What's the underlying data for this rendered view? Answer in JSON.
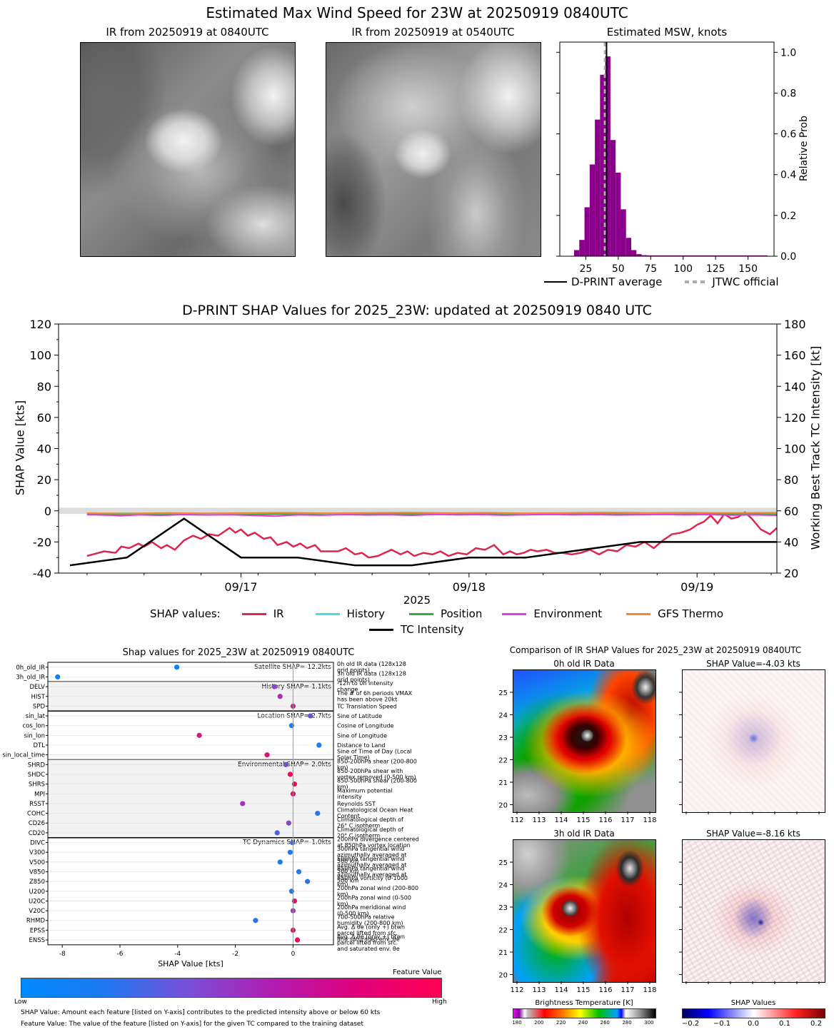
{
  "page": {
    "main_title": "Estimated Max Wind Speed for 23W at 20250919 0840UTC",
    "ir_now_title": "IR from 20250919 at 0840UTC",
    "ir_prev_title": "IR from 20250919 at 0540UTC",
    "hist_title": "Estimated MSW, knots",
    "hist_ylabel": "Relative Prob",
    "legend_dprint": "D-PRINT average",
    "legend_jtwc": "JTWC official",
    "shap_ts_title": "D-PRINT SHAP Values for 2025_23W: updated at 20250919 0840 UTC",
    "ts_ylabel_left": "SHAP Value [kts]",
    "ts_ylabel_right": "Working Best Track TC Intensity [kt]",
    "ts_xlabel": "2025",
    "shap_values_label": "SHAP values:",
    "shap_feat_title": "Shap values for 2025_23W at 20250919 0840UTC",
    "shap_feat_xlabel": "SHAP Value [kts]",
    "feature_value_label": "Feature Value",
    "cb_low": "Low",
    "cb_high": "High",
    "note1": "SHAP Value: Amount each feature [listed on Y-axis] contributes to the predicted intensity above or below 60 kts",
    "note2": "Feature Value: The value of the feature [listed on Y-axis] for the given TC compared to the training dataset",
    "ir_cmp_title": "Comparison of IR SHAP Values for 2025_23W at 20250919 0840UTC",
    "ir0_title": "0h old IR Data",
    "ir3_title": "3h old IR Data",
    "shap0_title": "SHAP Value=-4.03 kts",
    "shap3_title": "SHAP Value=-8.16 kts",
    "bt_label": "Brightness Temperature [K]",
    "shapcb_label": "SHAP Values"
  },
  "chart_data": [
    {
      "type": "bar",
      "title": "Estimated MSW, knots",
      "ylabel": "Relative Prob",
      "xlim": [
        5,
        170
      ],
      "ylim": [
        0,
        1.05
      ],
      "xticks": [
        "25",
        "50",
        "75",
        "100",
        "125",
        "150"
      ],
      "yticks": [
        "0.0",
        "0.2",
        "0.4",
        "0.6",
        "0.8",
        "1.0"
      ],
      "bin_width": 4,
      "bins_start": [
        16,
        20,
        24,
        28,
        32,
        36,
        40,
        44,
        48,
        52,
        56,
        60,
        64,
        68
      ],
      "values": [
        0.03,
        0.08,
        0.24,
        0.45,
        0.67,
        0.89,
        0.98,
        0.57,
        0.41,
        0.23,
        0.09,
        0.03,
        0.01,
        0.005
      ],
      "dprint_average": 41,
      "jtwc_official": 40
    },
    {
      "type": "line",
      "title": "D-PRINT SHAP Values for 2025_23W: updated at 20250919 0840 UTC",
      "x_domain": [
        0,
        6.3
      ],
      "xticks": [
        "09/17",
        "09/18",
        "09/19"
      ],
      "xlabel": "2025",
      "ylim_left": [
        -40,
        120
      ],
      "ylim_right": [
        20,
        180
      ],
      "yticks_left": [
        "120",
        "100",
        "80",
        "60",
        "40",
        "20",
        "0",
        "-20",
        "-40"
      ],
      "yticks_right": [
        "180",
        "160",
        "140",
        "120",
        "100",
        "80",
        "60",
        "40",
        "20"
      ],
      "series": [
        {
          "name": "IR",
          "color": "#dc2550",
          "x": [
            0.25,
            0.3,
            0.4,
            0.5,
            0.55,
            0.62,
            0.7,
            0.75,
            0.82,
            0.9,
            0.95,
            1.02,
            1.1,
            1.18,
            1.25,
            1.32,
            1.4,
            1.46,
            1.5,
            1.55,
            1.6,
            1.66,
            1.72,
            1.8,
            1.86,
            1.92,
            2.0,
            2.06,
            2.12,
            2.18,
            2.25,
            2.3,
            2.38,
            2.45,
            2.52,
            2.6,
            2.66,
            2.72,
            2.8,
            2.86,
            2.92,
            3.0,
            3.06,
            3.12,
            3.2,
            3.28,
            3.35,
            3.42,
            3.5,
            3.58,
            3.66,
            3.74,
            3.82,
            3.9,
            3.96,
            4.02,
            4.08,
            4.14,
            4.2,
            4.28,
            4.35,
            4.42,
            4.5,
            4.58,
            4.66,
            4.74,
            4.82,
            4.9,
            4.98,
            5.06,
            5.14,
            5.22,
            5.3,
            5.38,
            5.46,
            5.54,
            5.6,
            5.66,
            5.72,
            5.78,
            5.84,
            5.9,
            5.96,
            6.02,
            6.08,
            6.16,
            6.24,
            6.3
          ],
          "y": [
            -29,
            -28,
            -26,
            -27,
            -23,
            -24,
            -21,
            -23,
            -20,
            -24,
            -22,
            -25,
            -19,
            -16,
            -18,
            -15,
            -16,
            -13,
            -11,
            -14,
            -12,
            -16,
            -14,
            -18,
            -17,
            -22,
            -20,
            -23,
            -21,
            -24,
            -22,
            -26,
            -26,
            -26,
            -24,
            -28,
            -27,
            -30,
            -29,
            -27,
            -25,
            -28,
            -26,
            -29,
            -27,
            -28,
            -26,
            -29,
            -27,
            -28,
            -24,
            -25,
            -22,
            -28,
            -26,
            -28,
            -27,
            -25,
            -26,
            -25,
            -27,
            -27,
            -28,
            -27,
            -25,
            -28,
            -25,
            -26,
            -22,
            -23,
            -20,
            -24,
            -19,
            -15,
            -14,
            -12,
            -9,
            -7,
            -3,
            -8,
            -2,
            -5,
            -4,
            -1,
            -5,
            -12,
            -15,
            -11
          ]
        },
        {
          "name": "History",
          "color": "#44dfe8",
          "x": [
            0.25,
            0.6,
            0.95,
            1.3,
            1.65,
            2.0,
            2.35,
            2.7,
            3.05,
            3.4,
            3.75,
            4.1,
            4.45,
            4.8,
            5.15,
            5.5,
            5.85,
            6.3
          ],
          "y": [
            -1.8,
            -1.5,
            -1.9,
            -1.6,
            -1.4,
            -1.7,
            -1.5,
            -1.9,
            -1.6,
            -1.4,
            -1.8,
            -1.5,
            -1.7,
            -1.4,
            -1.6,
            -1.3,
            -1.5,
            -1.4
          ]
        },
        {
          "name": "Position",
          "color": "#3aaa3a",
          "x": [
            0.25,
            0.6,
            0.95,
            1.3,
            1.65,
            2.0,
            2.35,
            2.7,
            3.05,
            3.4,
            3.75,
            4.1,
            4.45,
            4.8,
            5.15,
            5.5,
            5.85,
            6.3
          ],
          "y": [
            -2.2,
            -2.5,
            -2.3,
            -2.6,
            -2.4,
            -2.2,
            -2.5,
            -2.3,
            -2.1,
            -2.4,
            -2.2,
            -2.5,
            -2.3,
            -2.1,
            -2.4,
            -2.2,
            -2.0,
            -2.3
          ]
        },
        {
          "name": "Environment",
          "color": "#e838e8",
          "x": [
            0.25,
            0.45,
            0.55,
            0.7,
            0.9,
            1.1,
            1.3,
            1.5,
            1.7,
            1.9,
            2.1,
            2.3,
            2.5,
            2.7,
            2.9,
            3.1,
            3.3,
            3.5,
            3.7,
            3.9,
            4.1,
            4.3,
            4.5,
            4.7,
            4.9,
            5.1,
            5.3,
            5.5,
            5.7,
            5.9,
            6.1,
            6.3
          ],
          "y": [
            -2.5,
            -2.8,
            -3.2,
            -2.6,
            -2.9,
            -2.4,
            -2.7,
            -2.5,
            -2.9,
            -3.4,
            -2.6,
            -2.8,
            -2.4,
            -2.7,
            -2.5,
            -2.9,
            -2.3,
            -2.6,
            -2.4,
            -2.8,
            -2.5,
            -2.2,
            -2.6,
            -2.4,
            -2.7,
            -2.5,
            -2.3,
            -2.6,
            -2.4,
            -2.8,
            -2.6,
            -2.9
          ]
        },
        {
          "name": "GFS Thermo",
          "color": "#f08a2c",
          "x": [
            0.25,
            0.6,
            0.95,
            1.3,
            1.65,
            2.0,
            2.35,
            2.7,
            3.05,
            3.4,
            3.75,
            4.1,
            4.45,
            4.8,
            5.15,
            5.5,
            5.85,
            6.3
          ],
          "y": [
            -1.5,
            -1.7,
            -1.3,
            -1.6,
            -1.4,
            -1.2,
            -1.5,
            -1.3,
            -1.1,
            -1.4,
            -1.2,
            -1.5,
            -1.3,
            -1.0,
            -1.3,
            -1.1,
            -1.4,
            -1.2
          ]
        },
        {
          "name": "TC Intensity",
          "color": "#000000",
          "axis": "right",
          "x": [
            0.1,
            0.6,
            1.1,
            1.6,
            2.1,
            2.6,
            3.1,
            3.6,
            4.1,
            4.6,
            5.1,
            5.6,
            6.1,
            6.3
          ],
          "y": [
            25,
            30,
            55,
            30,
            30,
            25,
            25,
            30,
            30,
            35,
            40,
            40,
            40,
            40
          ]
        }
      ]
    },
    {
      "type": "scatter",
      "title": "Shap values for 2025_23W at 20250919 0840UTC",
      "xlabel": "SHAP Value [kts]",
      "xlim": [
        -8.5,
        1.4
      ],
      "xticks": [
        "-8",
        "-6",
        "-4",
        "-2",
        "0"
      ],
      "groups": [
        {
          "label": "Satellite SHAP=-12.2kts",
          "shaded": false,
          "rows": [
            {
              "name": "0h_old_IR",
              "shap": -4.03,
              "fv": 0.05,
              "desc": "0h old IR data (128x128 grid points)"
            },
            {
              "name": "3h_old_IR",
              "shap": -8.16,
              "fv": 0.05,
              "desc": "3h old IR data (128x128 grid points)"
            }
          ]
        },
        {
          "label": "History SHAP=-1.1kts",
          "shaded": true,
          "rows": [
            {
              "name": "DELV",
              "shap": -0.65,
              "fv": 0.45,
              "desc": "-12h to 0h intensity change"
            },
            {
              "name": "HIST",
              "shap": -0.45,
              "fv": 0.6,
              "desc": "The # of 6h periods VMAX has been above 20kt"
            },
            {
              "name": "SPD",
              "shap": 0.0,
              "fv": 0.75,
              "desc": "TC Translation Speed"
            }
          ]
        },
        {
          "label": "Location SHAP=-2.7kts",
          "shaded": false,
          "rows": [
            {
              "name": "sin_lat",
              "shap": 0.6,
              "fv": 0.35,
              "desc": "Sine of Latitude"
            },
            {
              "name": "cos_lon",
              "shap": -0.05,
              "fv": 0.08,
              "desc": "Cosine of Longitude"
            },
            {
              "name": "sin_lon",
              "shap": -3.25,
              "fv": 0.8,
              "desc": "Sine of Longitude"
            },
            {
              "name": "DTL",
              "shap": 0.9,
              "fv": 0.1,
              "desc": "Distance to Land"
            },
            {
              "name": "sin_local_time",
              "shap": -0.9,
              "fv": 0.85,
              "desc": "Sine of Time of Day (Local Solar Time)"
            }
          ]
        },
        {
          "label": "Environmental SHAP=-2.0kts",
          "shaded": true,
          "rows": [
            {
              "name": "SHRD",
              "shap": -0.25,
              "fv": 0.4,
              "desc": "850-200hPa shear (200-800 km)"
            },
            {
              "name": "SHDC",
              "shap": -0.1,
              "fv": 0.95,
              "desc": "850-200hPa shear with vortex removed (0-500 km)"
            },
            {
              "name": "SHRS",
              "shap": 0.05,
              "fv": 0.95,
              "desc": "850-500hPa shear (200-800 km)"
            },
            {
              "name": "MPI",
              "shap": 0.0,
              "fv": 0.98,
              "desc": "Maximum potential intensity"
            },
            {
              "name": "RSST",
              "shap": -1.75,
              "fv": 0.55,
              "desc": "Reynolds SST"
            },
            {
              "name": "COHC",
              "shap": 0.85,
              "fv": 0.15,
              "desc": "Climatological Ocean Heat Content"
            },
            {
              "name": "CD26",
              "shap": -0.15,
              "fv": 0.45,
              "desc": "Climatological depth of 26° C isotherm"
            },
            {
              "name": "CD20",
              "shap": -0.55,
              "fv": 0.25,
              "desc": "Climatological depth of 20° C isotherm"
            }
          ]
        },
        {
          "label": "TC Dynamics SHAP=-1.0kts",
          "shaded": false,
          "rows": [
            {
              "name": "DIVC",
              "shap": -0.02,
              "fv": 0.2,
              "desc": "200hPa divergence centered at 850hPa vortex location"
            },
            {
              "name": "V300",
              "shap": -0.1,
              "fv": 0.1,
              "desc": "300hPa tangential wind azimuthally averaged at 500 km"
            },
            {
              "name": "V500",
              "shap": -0.45,
              "fv": 0.1,
              "desc": "500hPa tangential wind azimuthally averaged at 500 km"
            },
            {
              "name": "V850",
              "shap": 0.2,
              "fv": 0.1,
              "desc": "850hPa tangential wind azimuthally averaged at 500 km"
            },
            {
              "name": "Z850",
              "shap": 0.5,
              "fv": 0.15,
              "desc": "850hPa vorticity (0-1000 km)"
            },
            {
              "name": "U200",
              "shap": -0.05,
              "fv": 0.1,
              "desc": "200hPa zonal wind (200-800 km)"
            },
            {
              "name": "U20C",
              "shap": 0.05,
              "fv": 0.9,
              "desc": "200hPa zonal wind (0-500 km)"
            },
            {
              "name": "V20C",
              "shap": 0.0,
              "fv": 0.55,
              "desc": "200hPa meridional wind (0-500 km)"
            },
            {
              "name": "RHMD",
              "shap": -1.3,
              "fv": 0.15,
              "desc": "700-500hPa relative humidity (200-800 km)"
            },
            {
              "name": "EPSS",
              "shap": 0.0,
              "fv": 0.95,
              "desc": "Avg. Δ θe (only +) btwn parcel lifted from sfc. and saturated env. θe (200-800 km)"
            },
            {
              "name": "ENSS",
              "shap": 0.15,
              "fv": 0.95,
              "desc": "Avg. Δ θe (only +) btwn parcel lifted from sfc. and saturated env. θe (200-800 km)"
            }
          ]
        }
      ]
    },
    {
      "type": "heatmap",
      "title": "Comparison of IR SHAP Values for 2025_23W at 20250919 0840UTC",
      "xticks": [
        "112",
        "113",
        "114",
        "115",
        "116",
        "117",
        "118"
      ],
      "yticks": [
        "25",
        "24",
        "23",
        "22",
        "21",
        "20"
      ],
      "bt_ticks": [
        "180",
        "200",
        "220",
        "240",
        "260",
        "280",
        "300"
      ],
      "shap_ticks": [
        "−0.2",
        "−0.1",
        "0.0",
        "0.1",
        "0.2"
      ]
    }
  ]
}
